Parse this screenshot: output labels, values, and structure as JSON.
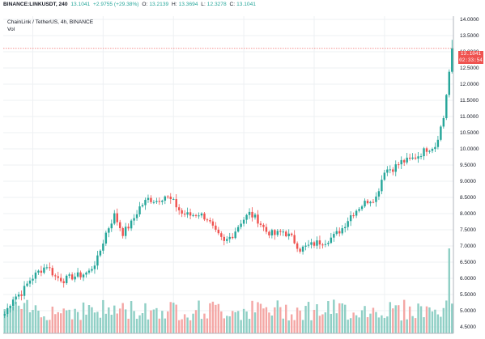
{
  "header": {
    "symbol": "BINANCE:LINKUSDT, 240",
    "last": "13.1041",
    "change": "+2.9755 (+29.38%)",
    "o_label": "O:",
    "o_value": "13.2139",
    "h_label": "H:",
    "h_value": "13.3694",
    "l_label": "L:",
    "l_value": "12.3278",
    "c_label": "C:",
    "c_value": "13.1041"
  },
  "legend": {
    "series": "ChainLink / TetherUS, 4h, BINANCE",
    "volume": "Vol"
  },
  "price_tag": {
    "price": "13.1041",
    "countdown": "02:33:54"
  },
  "colors": {
    "up": "#26a69a",
    "down": "#ef5350",
    "vol_up": "#8fcfc5",
    "vol_down": "#f4a7a5",
    "grid": "#eef0f3",
    "axis": "#b2b5be"
  },
  "chart_data": {
    "type": "candlestick",
    "symbol": "LINKUSDT",
    "exchange": "BINANCE",
    "timeframe": "4h",
    "ylim": [
      4.3,
      14.1
    ],
    "yticks": [
      "4.5000",
      "5.0000",
      "5.5000",
      "6.0000",
      "6.5000",
      "7.0000",
      "7.5000",
      "8.0000",
      "8.5000",
      "9.0000",
      "9.5000",
      "10.0000",
      "10.5000",
      "11.0000",
      "11.5000",
      "12.0000",
      "12.5000",
      "13.0000",
      "13.5000",
      "14.0000"
    ],
    "last_price": 13.1041,
    "close_anchors": [
      [
        0,
        4.9
      ],
      [
        3,
        5.4
      ],
      [
        6,
        5.55
      ],
      [
        9,
        5.95
      ],
      [
        12,
        6.2
      ],
      [
        15,
        6.4
      ],
      [
        18,
        6.05
      ],
      [
        21,
        5.95
      ],
      [
        24,
        6.05
      ],
      [
        27,
        6.1
      ],
      [
        30,
        6.2
      ],
      [
        33,
        6.6
      ],
      [
        36,
        7.4
      ],
      [
        39,
        7.95
      ],
      [
        42,
        7.4
      ],
      [
        45,
        7.7
      ],
      [
        48,
        8.2
      ],
      [
        51,
        8.45
      ],
      [
        54,
        8.4
      ],
      [
        57,
        8.55
      ],
      [
        60,
        8.35
      ],
      [
        63,
        8.0
      ],
      [
        66,
        7.95
      ],
      [
        69,
        8.0
      ],
      [
        72,
        7.85
      ],
      [
        75,
        7.4
      ],
      [
        78,
        7.1
      ],
      [
        81,
        7.35
      ],
      [
        84,
        7.75
      ],
      [
        87,
        8.0
      ],
      [
        90,
        7.8
      ],
      [
        93,
        7.45
      ],
      [
        96,
        7.35
      ],
      [
        99,
        7.45
      ],
      [
        102,
        7.25
      ],
      [
        105,
        6.9
      ],
      [
        108,
        7.0
      ],
      [
        111,
        7.1
      ],
      [
        114,
        7.15
      ],
      [
        117,
        7.3
      ],
      [
        120,
        7.55
      ],
      [
        123,
        7.95
      ],
      [
        126,
        8.2
      ],
      [
        129,
        8.4
      ],
      [
        132,
        8.5
      ],
      [
        135,
        9.35
      ],
      [
        138,
        9.4
      ],
      [
        141,
        9.6
      ],
      [
        144,
        9.65
      ],
      [
        147,
        9.8
      ],
      [
        150,
        10.0
      ],
      [
        153,
        10.1
      ],
      [
        156,
        10.95
      ],
      [
        159,
        13.1
      ]
    ],
    "volume_ylim": [
      0,
      1
    ],
    "volume_spikes": [
      {
        "index": 158,
        "relative_volume": 1.0
      },
      {
        "index": 159,
        "relative_volume": 0.35
      }
    ]
  }
}
